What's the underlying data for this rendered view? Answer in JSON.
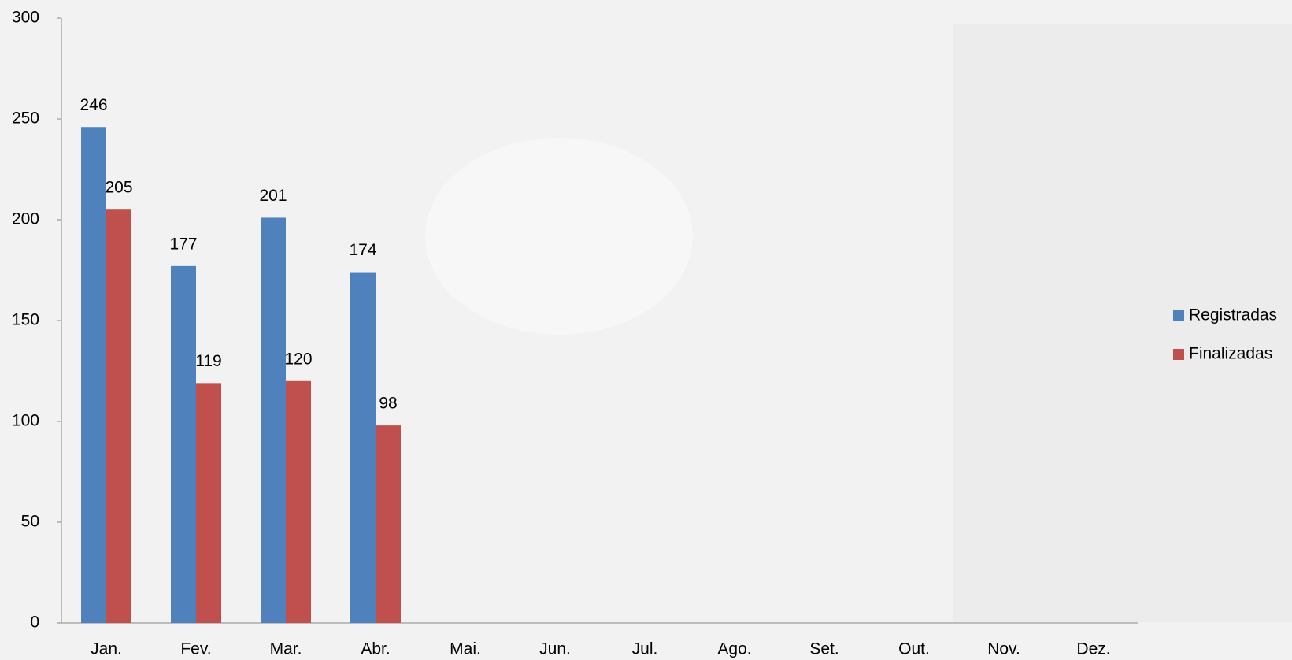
{
  "chart_data": {
    "type": "bar",
    "categories": [
      "Jan.",
      "Fev.",
      "Mar.",
      "Abr.",
      "Mai.",
      "Jun.",
      "Jul.",
      "Ago.",
      "Set.",
      "Out.",
      "Nov.",
      "Dez."
    ],
    "series": [
      {
        "name": "Registradas",
        "color": "#4f81bd",
        "values": [
          246,
          177,
          201,
          174,
          null,
          null,
          null,
          null,
          null,
          null,
          null,
          null
        ]
      },
      {
        "name": "Finalizadas",
        "color": "#c0504d",
        "values": [
          205,
          119,
          120,
          98,
          null,
          null,
          null,
          null,
          null,
          null,
          null,
          null
        ]
      }
    ],
    "ylim": [
      0,
      300
    ],
    "yticks": [
      0,
      50,
      100,
      150,
      200,
      250,
      300
    ],
    "legend": "right"
  }
}
